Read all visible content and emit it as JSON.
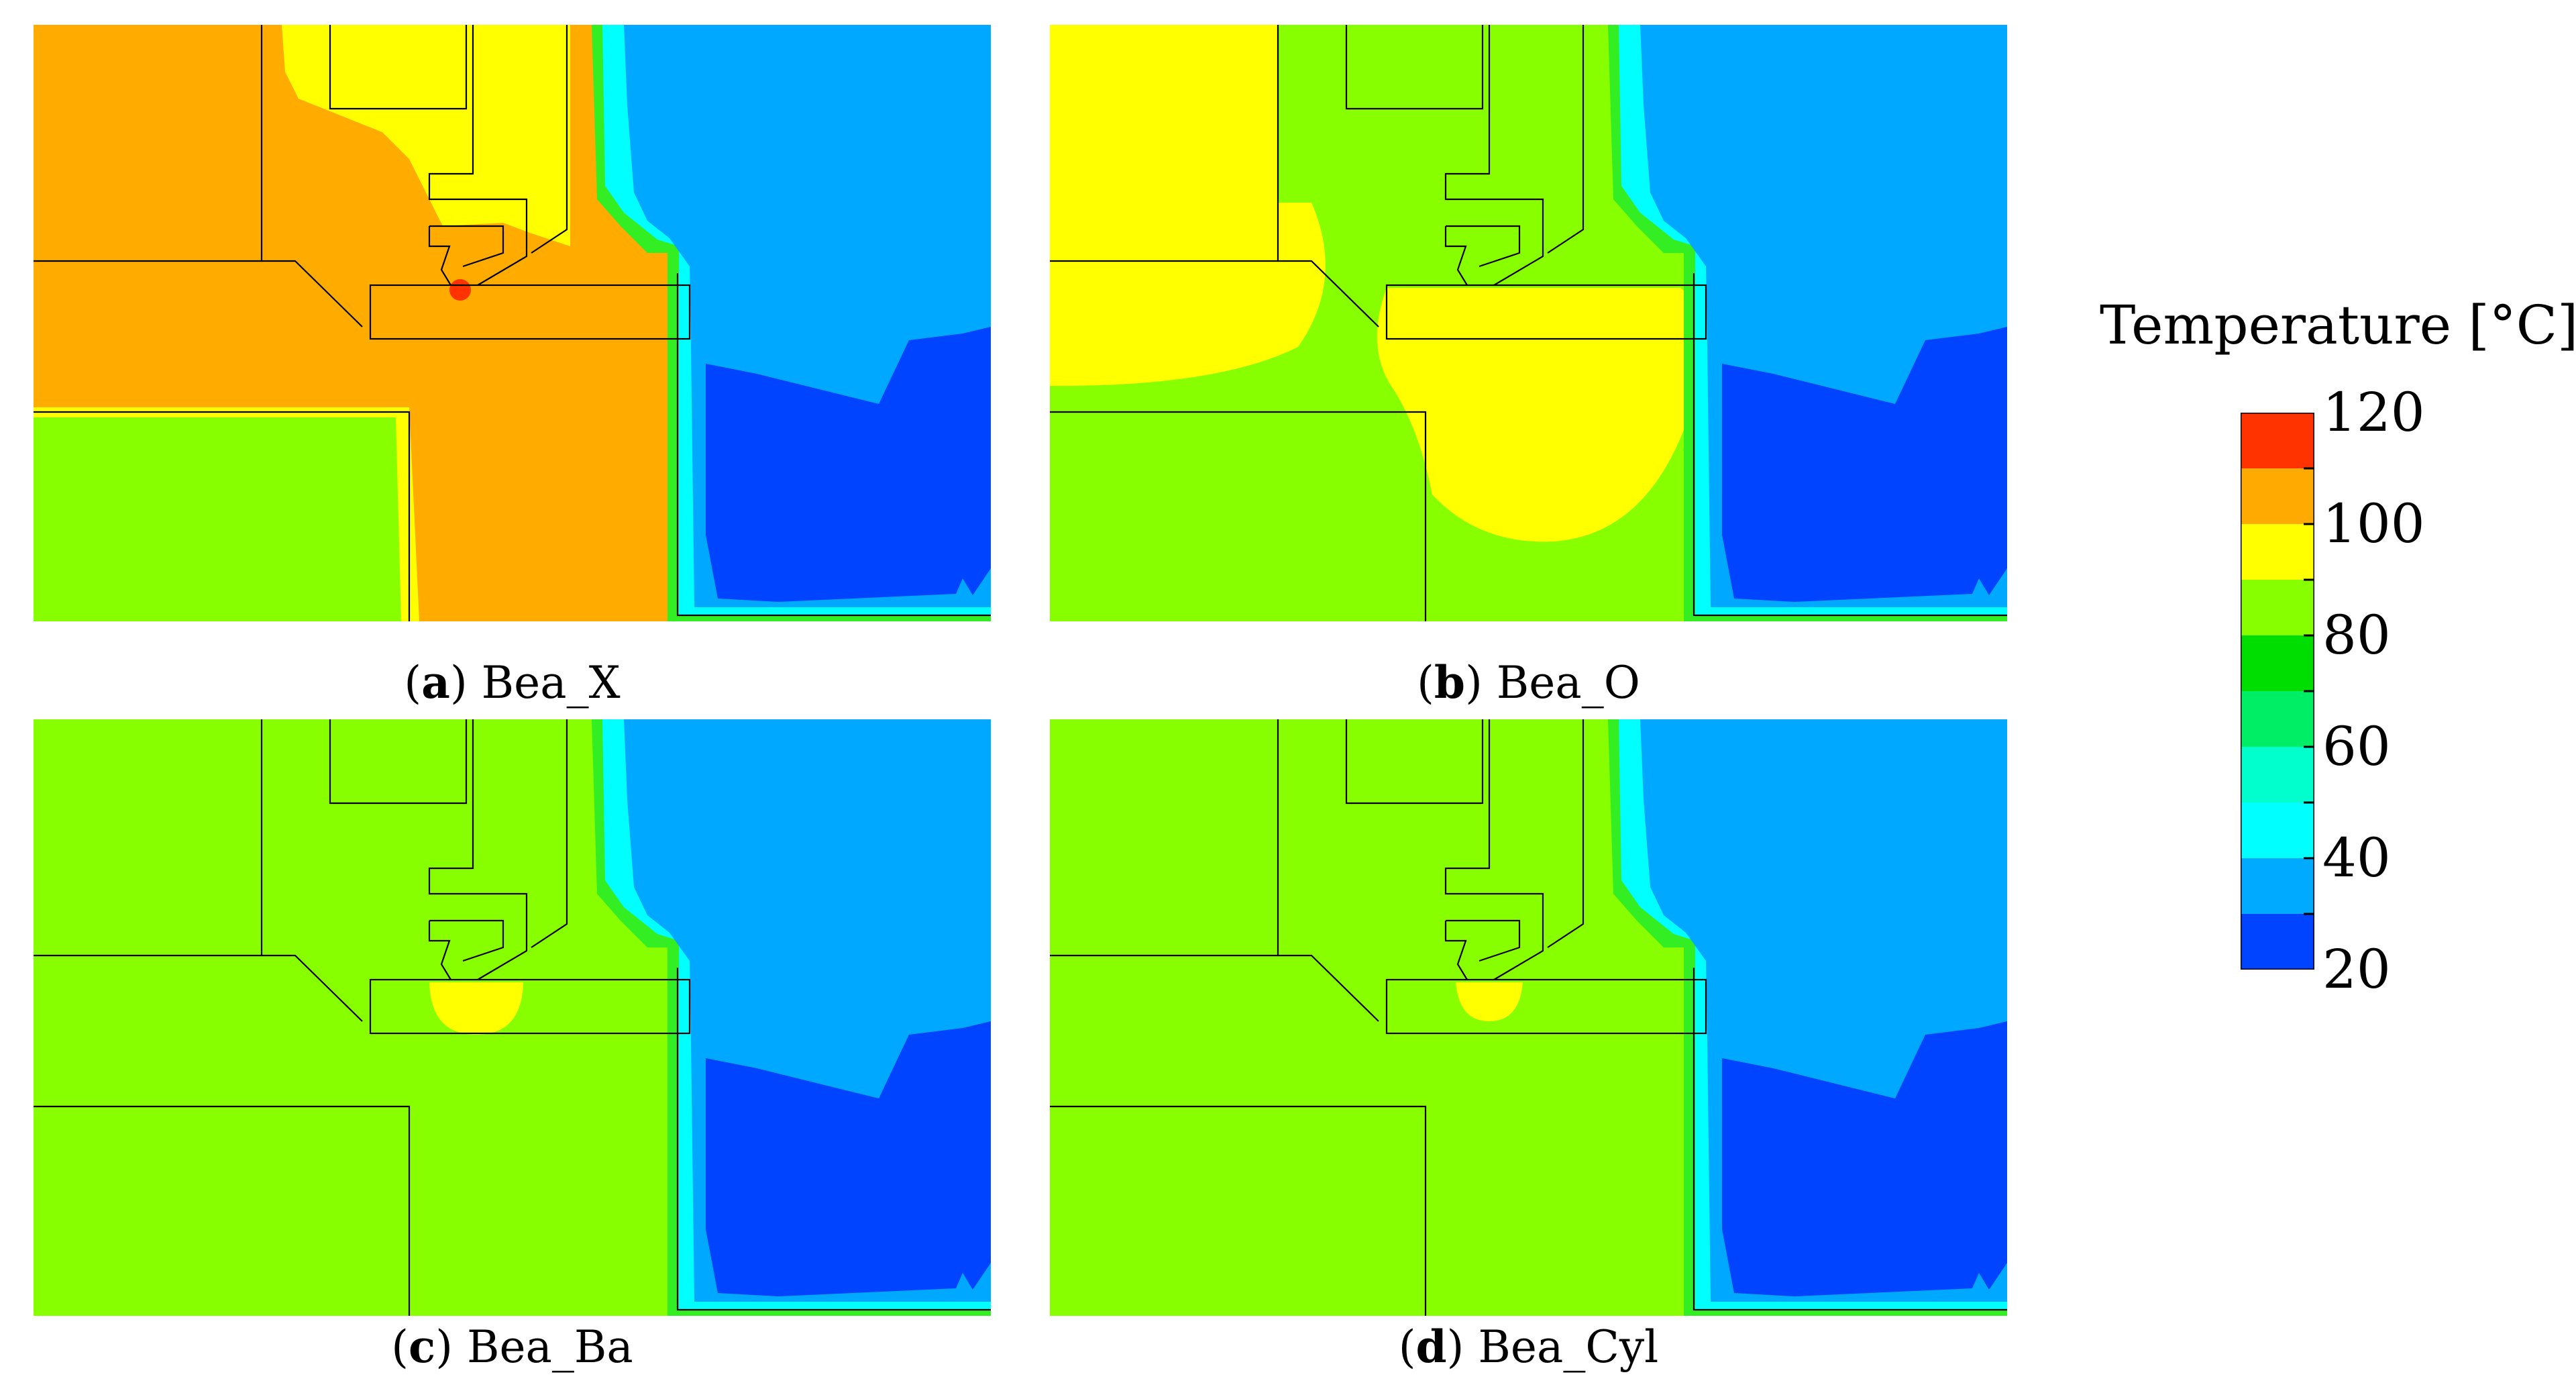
{
  "panels": [
    {
      "id": "a",
      "label": "a",
      "name": "Bea_X",
      "scheme": "hot"
    },
    {
      "id": "b",
      "label": "b",
      "name": "Bea_O",
      "scheme": "warm"
    },
    {
      "id": "c",
      "label": "c",
      "name": "Bea_Ba",
      "scheme": "cool_ball"
    },
    {
      "id": "d",
      "label": "d",
      "name": "Bea_Cyl",
      "scheme": "cool_cyl"
    }
  ],
  "legend": {
    "title": "Temperature [°C]",
    "ticks": [
      "120",
      "100",
      "80",
      "60",
      "40",
      "20"
    ],
    "levels_top_to_bottom": [
      "#ff3300",
      "#ffaa00",
      "#ffff00",
      "#88ff00",
      "#00dd00",
      "#00ee66",
      "#00ffcc",
      "#00ffff",
      "#00aaff",
      "#0044ff"
    ]
  },
  "colors": {
    "orange": "#ffab00",
    "yellow": "#ffff00",
    "lime": "#88ff00",
    "green": "#33ee22",
    "cyan": "#00ffff",
    "lightblue": "#00a9ff",
    "blue": "#0044ff",
    "red": "#ff3300"
  }
}
